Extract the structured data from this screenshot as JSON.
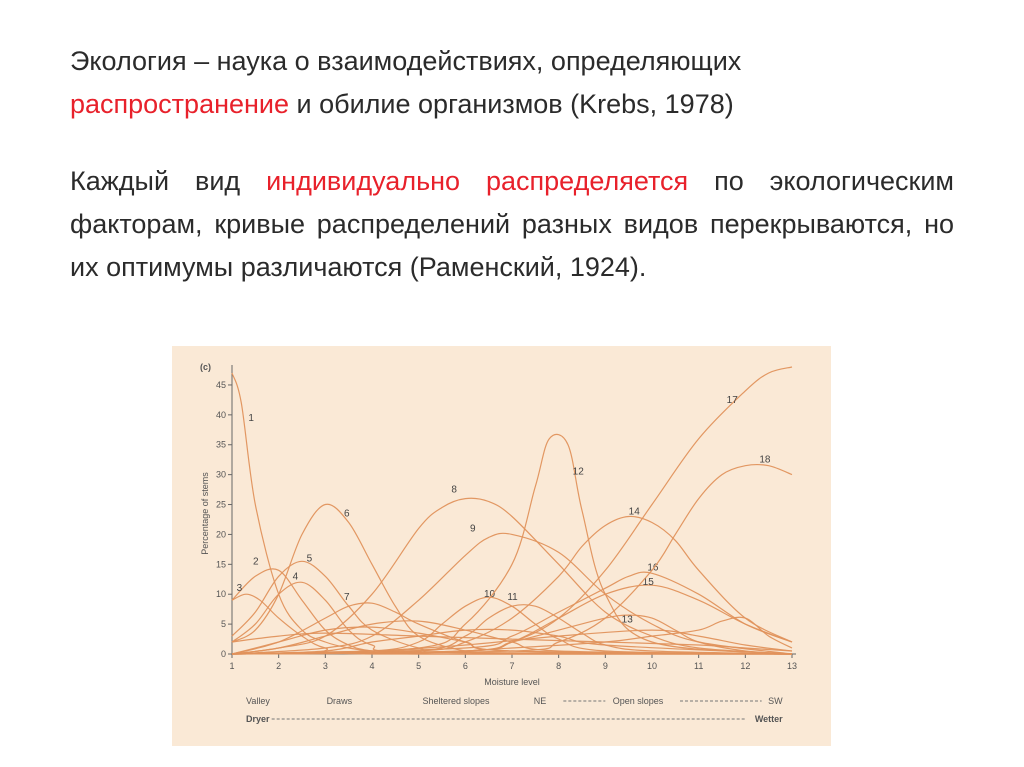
{
  "slide": {
    "para1": {
      "seg1": "Экология – наука о взаимодействиях, определяющих",
      "seg2": "распространение",
      "seg3": " и обилие организмов (Krebs, 1978)"
    },
    "para2": {
      "seg1": "Каждый вид ",
      "seg2": "индивидуально распределяется",
      "seg3": " по экологическим факторам, кривые распределений разных видов перекрываются, но их оптимумы различаются (Раменский, 1924)."
    }
  },
  "chart_data": {
    "type": "line",
    "panel_label": "(c)",
    "xlabel": "Moisture level",
    "ylabel": "Percentage of stems",
    "xlim": [
      1,
      13
    ],
    "ylim": [
      0,
      47
    ],
    "xticks": [
      1,
      2,
      3,
      4,
      5,
      6,
      7,
      8,
      9,
      10,
      11,
      12,
      13
    ],
    "yticks": [
      0,
      5,
      10,
      15,
      20,
      25,
      30,
      35,
      40,
      45
    ],
    "line_color": "#e0925c",
    "gradient_row1": {
      "labels": [
        "Valley",
        "Draws",
        "Sheltered slopes",
        "NE",
        "Open slopes",
        "SW"
      ],
      "x": [
        1.3,
        3.3,
        5.8,
        7.6,
        9.7,
        12.8
      ]
    },
    "gradient_row2": {
      "labels": [
        "Dryer",
        "Wetter"
      ],
      "x": [
        1.3,
        12.8
      ]
    },
    "series": [
      {
        "name": "1",
        "x": [
          1,
          1.2,
          1.5,
          2,
          2.5,
          3,
          3.5,
          4,
          5,
          6,
          13
        ],
        "y": [
          47,
          42,
          25,
          10,
          4,
          2,
          1,
          0.5,
          0.2,
          0,
          0
        ],
        "label_pos": [
          1.35,
          39
        ]
      },
      {
        "name": "2",
        "x": [
          1,
          1.5,
          2,
          2.5,
          3,
          3.5,
          4,
          5,
          13
        ],
        "y": [
          9,
          13,
          14,
          9,
          4,
          1.5,
          0.5,
          0,
          0
        ],
        "label_pos": [
          1.45,
          15
        ]
      },
      {
        "name": "3",
        "x": [
          1,
          1.3,
          1.6,
          2,
          2.5,
          3,
          4,
          13
        ],
        "y": [
          9,
          10,
          9,
          6,
          3,
          1,
          0,
          0
        ],
        "label_pos": [
          1.1,
          10.5
        ]
      },
      {
        "name": "4",
        "x": [
          1,
          1.5,
          2,
          2.5,
          3,
          3.5,
          4,
          5,
          13
        ],
        "y": [
          2,
          5,
          10,
          12,
          9,
          4,
          1.5,
          0.3,
          0
        ],
        "label_pos": [
          2.3,
          12.5
        ]
      },
      {
        "name": "5",
        "x": [
          1,
          1.5,
          2,
          2.5,
          3,
          3.5,
          4,
          5,
          6,
          13
        ],
        "y": [
          3,
          7,
          13,
          15.5,
          13,
          8,
          4,
          1,
          0.2,
          0
        ],
        "label_pos": [
          2.6,
          15.5
        ]
      },
      {
        "name": "6",
        "x": [
          1,
          1.5,
          2,
          2.5,
          3,
          3.5,
          4,
          4.5,
          5,
          6,
          7,
          13
        ],
        "y": [
          2,
          4,
          10,
          20,
          25,
          22,
          15,
          8,
          3,
          0.5,
          0.1,
          0
        ],
        "label_pos": [
          3.4,
          23
        ]
      },
      {
        "name": "7",
        "x": [
          1,
          2,
          3,
          3.5,
          4,
          4.5,
          5,
          6,
          7,
          13
        ],
        "y": [
          0,
          2,
          6,
          8,
          8.5,
          7,
          5,
          2,
          0.5,
          0
        ],
        "label_pos": [
          3.4,
          9
        ]
      },
      {
        "name": "8",
        "x": [
          1,
          2,
          3,
          4,
          5,
          5.5,
          6,
          6.5,
          7,
          8,
          9,
          10,
          11,
          13
        ],
        "y": [
          0,
          1,
          3,
          10,
          21,
          24.5,
          26,
          25.5,
          23,
          15,
          7,
          3,
          1,
          0
        ],
        "label_pos": [
          5.7,
          27
        ]
      },
      {
        "name": "9",
        "x": [
          1,
          3,
          4,
          5,
          6,
          6.5,
          7,
          8,
          9,
          10,
          11,
          13
        ],
        "y": [
          0,
          1,
          3,
          9,
          16.5,
          19.5,
          20,
          17,
          10,
          5,
          2,
          0
        ],
        "label_pos": [
          6.1,
          20.5
        ]
      },
      {
        "name": "10",
        "x": [
          1,
          4,
          5,
          5.5,
          6,
          6.5,
          7,
          7.5,
          8,
          9,
          13
        ],
        "y": [
          0,
          0.5,
          2,
          5,
          8,
          9.5,
          8,
          5,
          2.5,
          0.5,
          0
        ],
        "label_pos": [
          6.4,
          9.5
        ]
      },
      {
        "name": "11",
        "x": [
          1,
          5,
          6,
          6.5,
          7,
          7.5,
          8,
          8.5,
          9,
          10,
          13
        ],
        "y": [
          0,
          0.5,
          3,
          6,
          8,
          8,
          6,
          3.5,
          1.5,
          0.5,
          0
        ],
        "label_pos": [
          6.9,
          9
        ]
      },
      {
        "name": "12",
        "x": [
          1,
          5,
          6,
          7,
          7.5,
          7.8,
          8.2,
          8.5,
          9,
          10,
          13
        ],
        "y": [
          0,
          1,
          5,
          15,
          28,
          36,
          35,
          24,
          10,
          2,
          0
        ],
        "label_pos": [
          8.3,
          30
        ]
      },
      {
        "name": "13",
        "x": [
          1,
          6,
          7,
          8,
          9,
          9.5,
          10,
          10.5,
          11,
          12,
          13
        ],
        "y": [
          0,
          0.5,
          2,
          4,
          6,
          6.5,
          6,
          4,
          2,
          0.5,
          0
        ],
        "label_pos": [
          9.35,
          5.3
        ]
      },
      {
        "name": "14",
        "x": [
          1,
          5,
          6,
          7,
          8,
          8.5,
          9,
          9.5,
          10,
          10.5,
          11,
          12,
          13
        ],
        "y": [
          0,
          0.5,
          2,
          6,
          13,
          18,
          21.5,
          23,
          22,
          19,
          14,
          6,
          2
        ],
        "label_pos": [
          9.5,
          23.3
        ]
      },
      {
        "name": "15",
        "x": [
          1,
          6,
          7,
          8,
          9,
          10,
          11,
          12,
          13
        ],
        "y": [
          0,
          0.5,
          2,
          6,
          10,
          11.5,
          9,
          5,
          2
        ],
        "label_pos": [
          9.8,
          11.5
        ]
      },
      {
        "name": "16",
        "x": [
          1,
          6,
          7,
          8,
          9,
          9.5,
          10,
          11,
          12,
          13
        ],
        "y": [
          0,
          1,
          3,
          7,
          11,
          13,
          13.5,
          10,
          5,
          2
        ],
        "label_pos": [
          9.9,
          14
        ]
      },
      {
        "name": "17",
        "x": [
          1,
          6,
          7,
          8,
          9,
          10,
          11,
          12,
          12.5,
          13
        ],
        "y": [
          0,
          0.5,
          2,
          6,
          14,
          25,
          36,
          44,
          47,
          48
        ],
        "label_pos": [
          11.6,
          42
        ]
      },
      {
        "name": "18",
        "x": [
          1,
          7,
          8,
          9,
          10,
          10.5,
          11,
          11.5,
          12,
          12.5,
          13
        ],
        "y": [
          0,
          0.5,
          2,
          6,
          14,
          20,
          26,
          30,
          31.5,
          31.5,
          30
        ],
        "label_pos": [
          12.3,
          32
        ]
      },
      {
        "name": "",
        "x": [
          1,
          2,
          3,
          4,
          5,
          6,
          7,
          13
        ],
        "y": [
          0,
          2,
          4,
          4.5,
          3.5,
          2,
          0.5,
          0
        ]
      },
      {
        "name": "",
        "x": [
          1,
          2,
          3,
          4,
          5,
          6,
          7,
          8,
          13
        ],
        "y": [
          0,
          1,
          3,
          5,
          5.5,
          4,
          2,
          0.5,
          0
        ]
      },
      {
        "name": "",
        "x": [
          1,
          3,
          4,
          5,
          6,
          7,
          8,
          9,
          13
        ],
        "y": [
          0,
          0.5,
          2,
          3,
          4,
          4,
          3,
          1.5,
          0
        ]
      },
      {
        "name": "",
        "x": [
          1,
          4,
          6,
          8,
          10,
          11,
          12,
          13
        ],
        "y": [
          0,
          0.5,
          1.5,
          3,
          4,
          3,
          1.5,
          0.5
        ]
      },
      {
        "name": "",
        "x": [
          1,
          5,
          7,
          9,
          10,
          11,
          11.5,
          12,
          12.5,
          13
        ],
        "y": [
          0,
          0.2,
          1,
          2,
          3,
          4,
          5.5,
          6,
          3,
          1
        ]
      },
      {
        "name": "",
        "x": [
          1,
          2,
          3,
          5,
          7,
          9,
          11,
          12,
          13
        ],
        "y": [
          2,
          3,
          3.5,
          3,
          2.5,
          2,
          1.5,
          1,
          0.5
        ]
      }
    ]
  }
}
